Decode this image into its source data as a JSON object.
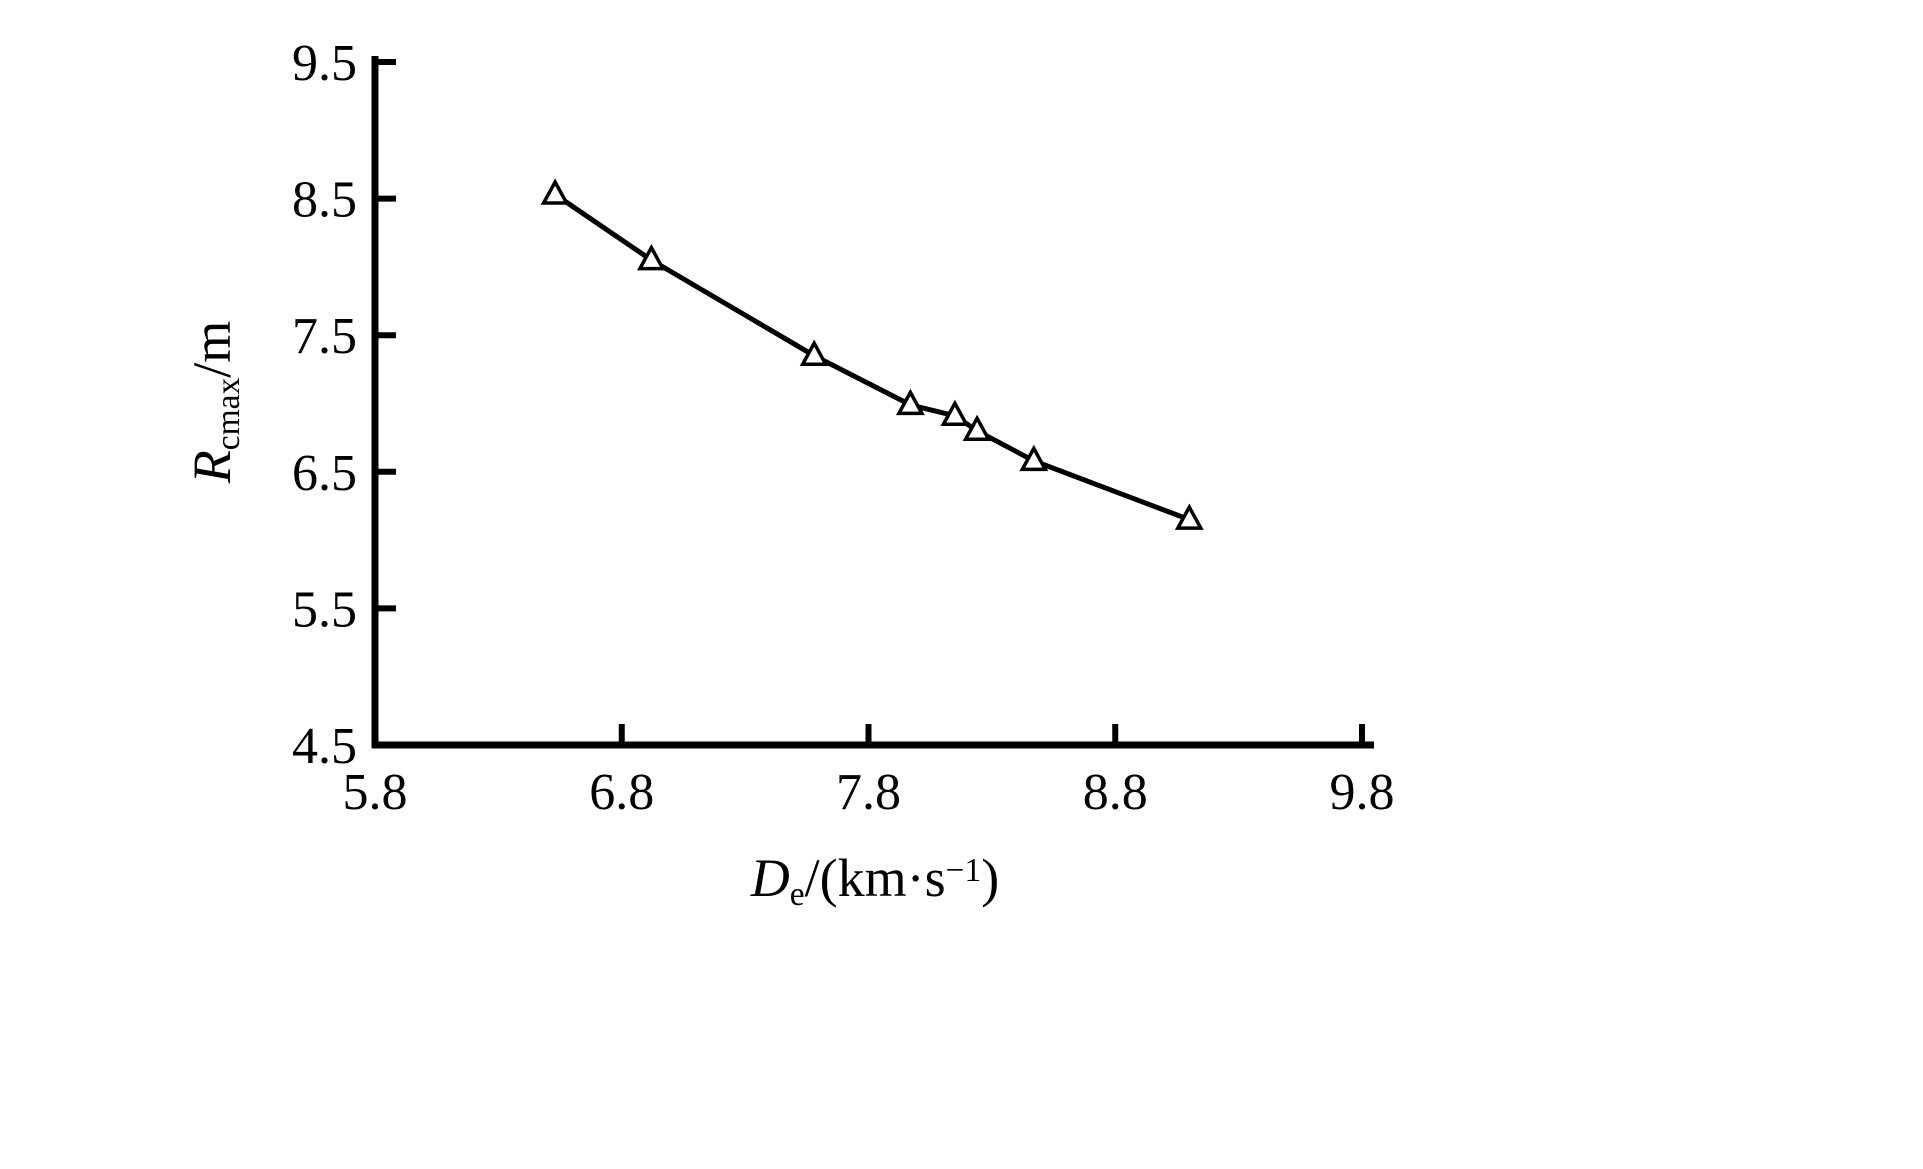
{
  "chart_data": {
    "type": "line",
    "title": "",
    "xlabel": "De/(km·s−1)",
    "ylabel": "Rcmax/m",
    "xlim": [
      5.8,
      9.8
    ],
    "ylim": [
      4.5,
      9.5
    ],
    "xticks": [
      5.8,
      6.8,
      7.8,
      8.8,
      9.8
    ],
    "yticks": [
      4.5,
      5.5,
      6.5,
      7.5,
      8.5,
      9.5
    ],
    "grid": false,
    "legend": "none",
    "series": [
      {
        "name": "Rcmax vs De",
        "marker": "open-triangle",
        "color": "#000000",
        "x": [
          6.53,
          6.92,
          7.58,
          7.97,
          8.15,
          8.24,
          8.47,
          9.1
        ],
        "y": [
          8.53,
          8.05,
          7.35,
          6.99,
          6.91,
          6.8,
          6.58,
          6.15
        ]
      }
    ]
  },
  "labels": {
    "y": {
      "symbol": "R",
      "sub": "cmax",
      "rest": "/m"
    },
    "x": {
      "symbol": "D",
      "sub": "e",
      "pre": "/(km·s",
      "sup": "−1",
      "post": ")"
    }
  },
  "style": {
    "axis_color": "#000000",
    "background": "#ffffff"
  }
}
